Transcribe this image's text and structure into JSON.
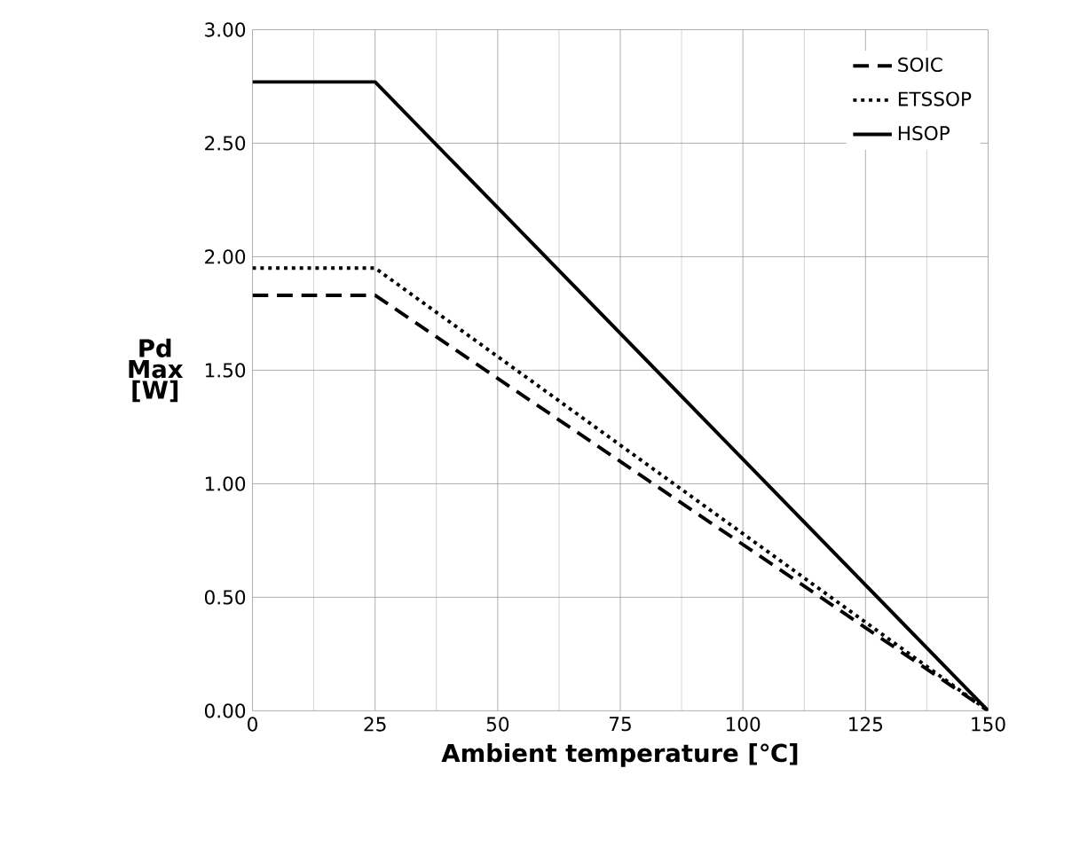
{
  "chart_data": {
    "type": "line",
    "xlabel": "Ambient temperature [℃]",
    "ylabel": "Pd Max [W]",
    "xlim": [
      0,
      150
    ],
    "xticks": [
      0,
      25,
      50,
      75,
      100,
      125,
      150
    ],
    "ylim": [
      0,
      3
    ],
    "yticks": [
      {
        "value": 0,
        "label": "0.00"
      },
      {
        "value": 0.5,
        "label": "0.50"
      },
      {
        "value": 1,
        "label": "1.00"
      },
      {
        "value": 1.5,
        "label": "1.50"
      },
      {
        "value": 2,
        "label": "2.00"
      },
      {
        "value": 2.5,
        "label": "2.50"
      },
      {
        "value": 3,
        "label": "3.00"
      }
    ],
    "grid": true,
    "legend": "top right",
    "marker": "none",
    "series": [
      {
        "name": "SOIC",
        "color": "#000000",
        "line_style": "dashed",
        "x": [
          0,
          25,
          150
        ],
        "values": [
          1.83,
          1.83,
          0
        ]
      },
      {
        "name": "ETSSOP",
        "color": "#000000",
        "line_style": "dotted",
        "x": [
          0,
          25,
          150
        ],
        "values": [
          1.95,
          1.95,
          0
        ]
      },
      {
        "name": "HSOP",
        "color": "#000000",
        "line_style": "solid",
        "x": [
          0,
          25,
          150
        ],
        "values": [
          2.77,
          2.77,
          0
        ]
      }
    ]
  }
}
